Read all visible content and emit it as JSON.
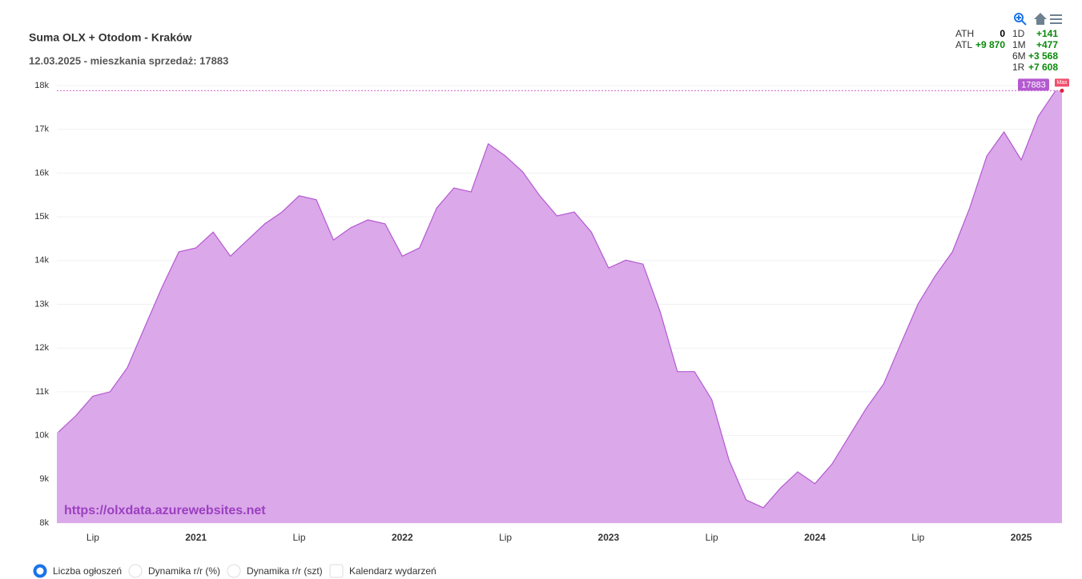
{
  "chart_data": {
    "type": "area",
    "title": "Suma OLX + Otodom - Kraków",
    "subtitle": "12.03.2025 - mieszkania sprzedaż: 17883",
    "watermark": "https://olxdata.azurewebsites.net",
    "max_label": "Max",
    "color": "#b45ad0",
    "fill": "#dba8ea",
    "categories": [
      null,
      null,
      "Lip",
      null,
      null,
      null,
      null,
      null,
      "2021",
      null,
      null,
      null,
      null,
      null,
      "Lip",
      null,
      null,
      null,
      null,
      null,
      "2022",
      null,
      null,
      null,
      null,
      null,
      "Lip",
      null,
      null,
      null,
      null,
      null,
      "2023",
      null,
      null,
      null,
      null,
      null,
      "Lip",
      null,
      null,
      null,
      null,
      null,
      "2024",
      null,
      null,
      null,
      null,
      null,
      "Lip",
      null,
      null,
      null,
      null,
      null,
      "2025",
      null,
      null
    ],
    "values": [
      10080,
      10450,
      10900,
      11000,
      11550,
      12460,
      13370,
      14200,
      14290,
      14650,
      14100,
      14470,
      14840,
      15110,
      15480,
      15390,
      14470,
      14750,
      14930,
      14840,
      14100,
      14290,
      15200,
      15660,
      15570,
      16670,
      16390,
      16030,
      15480,
      15020,
      15110,
      14650,
      13830,
      14010,
      13920,
      12830,
      11460,
      11460,
      10820,
      9440,
      8530,
      8350,
      8800,
      9170,
      8900,
      9350,
      9990,
      10630,
      11180,
      12100,
      13010,
      13650,
      14200,
      15200,
      16390,
      16940,
      16300,
      17300,
      17883
    ],
    "ylim": [
      8000,
      18000
    ],
    "yticks": [
      {
        "value": 8000,
        "label": "8k"
      },
      {
        "value": 9000,
        "label": "9k"
      },
      {
        "value": 10000,
        "label": "10k"
      },
      {
        "value": 11000,
        "label": "11k"
      },
      {
        "value": 12000,
        "label": "12k"
      },
      {
        "value": 13000,
        "label": "13k"
      },
      {
        "value": 14000,
        "label": "14k"
      },
      {
        "value": 15000,
        "label": "15k"
      },
      {
        "value": 16000,
        "label": "16k"
      },
      {
        "value": 17000,
        "label": "17k"
      },
      {
        "value": 18000,
        "label": "18k"
      }
    ],
    "grid": true
  },
  "stats": {
    "ath": {
      "label": "ATH",
      "value": "0"
    },
    "atl": {
      "label": "ATL",
      "value": "+9 870"
    },
    "changes": [
      {
        "label": "1D",
        "value": "+141"
      },
      {
        "label": "1M",
        "value": "+477"
      },
      {
        "label": "6M",
        "value": "+3 568"
      },
      {
        "label": "1R",
        "value": "+7 608"
      }
    ]
  },
  "controls": [
    "Liczba ogłoszeń",
    "Dynamika r/r (%)",
    "Dynamika r/r (szt)",
    "Kalendarz wydarzeń"
  ]
}
